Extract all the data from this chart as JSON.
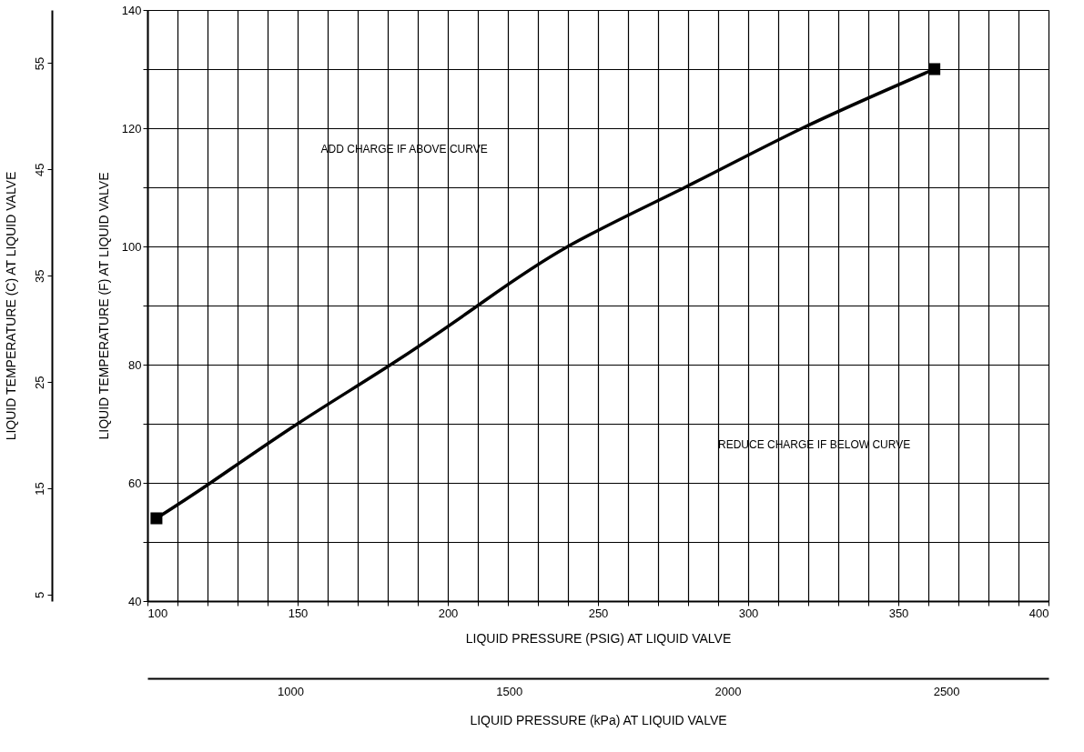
{
  "chart_data": {
    "type": "line",
    "xlabel": "LIQUID PRESSURE (PSIG) AT LIQUID VALVE",
    "ylabel": "LIQUID TEMPERATURE (F) AT LIQUID VALVE",
    "y2label": "LIQUID TEMPERATURE (C) AT LIQUID VALVE",
    "x2label": "LIQUID PRESSURE (kPa) AT LIQUID VALVE",
    "xlim": [
      100,
      400
    ],
    "ylim": [
      40,
      140
    ],
    "x2lim": [
      673,
      2734
    ],
    "y2lim": [
      4.4,
      60
    ],
    "xticks": [
      100,
      {
        "value": 110,
        "label": null
      },
      {
        "value": 120,
        "label": null
      },
      {
        "value": 130,
        "label": null
      },
      {
        "value": 140,
        "label": null
      },
      150,
      {
        "value": 160,
        "label": null
      },
      {
        "value": 170,
        "label": null
      },
      {
        "value": 180,
        "label": null
      },
      {
        "value": 190,
        "label": null
      },
      200,
      {
        "value": 210,
        "label": null
      },
      {
        "value": 220,
        "label": null
      },
      {
        "value": 230,
        "label": null
      },
      {
        "value": 240,
        "label": null
      },
      250,
      {
        "value": 260,
        "label": null
      },
      {
        "value": 270,
        "label": null
      },
      {
        "value": 280,
        "label": null
      },
      {
        "value": 290,
        "label": null
      },
      300,
      {
        "value": 310,
        "label": null
      },
      {
        "value": 320,
        "label": null
      },
      {
        "value": 330,
        "label": null
      },
      {
        "value": 340,
        "label": null
      },
      350,
      {
        "value": 360,
        "label": null
      },
      {
        "value": 370,
        "label": null
      },
      {
        "value": 380,
        "label": null
      },
      {
        "value": 390,
        "label": null
      },
      400
    ],
    "yticks": [
      40,
      {
        "value": 50,
        "label": null
      },
      60,
      {
        "value": 70,
        "label": null
      },
      80,
      {
        "value": 90,
        "label": null
      },
      100,
      {
        "value": 110,
        "label": null
      },
      120,
      {
        "value": 130,
        "label": null
      },
      140
    ],
    "x2ticks": [
      {
        "value": 1000,
        "label": "1000"
      },
      {
        "value": 1500,
        "label": "1500"
      },
      {
        "value": 2000,
        "label": "2000"
      },
      {
        "value": 2500,
        "label": "2500"
      }
    ],
    "y2ticks": [
      5,
      15,
      25,
      35,
      45,
      55
    ],
    "grid": true,
    "series": [
      {
        "line_style": "solid",
        "color": "#000000",
        "x": [
          103,
          121,
          150,
          181,
          210,
          240,
          279,
          318,
          362
        ],
        "values": [
          54,
          60,
          70,
          80,
          90,
          100,
          110,
          120,
          130
        ]
      },
      {
        "type": "scatter",
        "marker": "square",
        "color": "#000000",
        "x": [
          103,
          362
        ],
        "values": [
          54,
          130
        ]
      }
    ],
    "annotations": [
      "ADD CHARGE IF ABOVE CURVE",
      "REDUCE CHARGE IF BELOW CURVE"
    ]
  }
}
